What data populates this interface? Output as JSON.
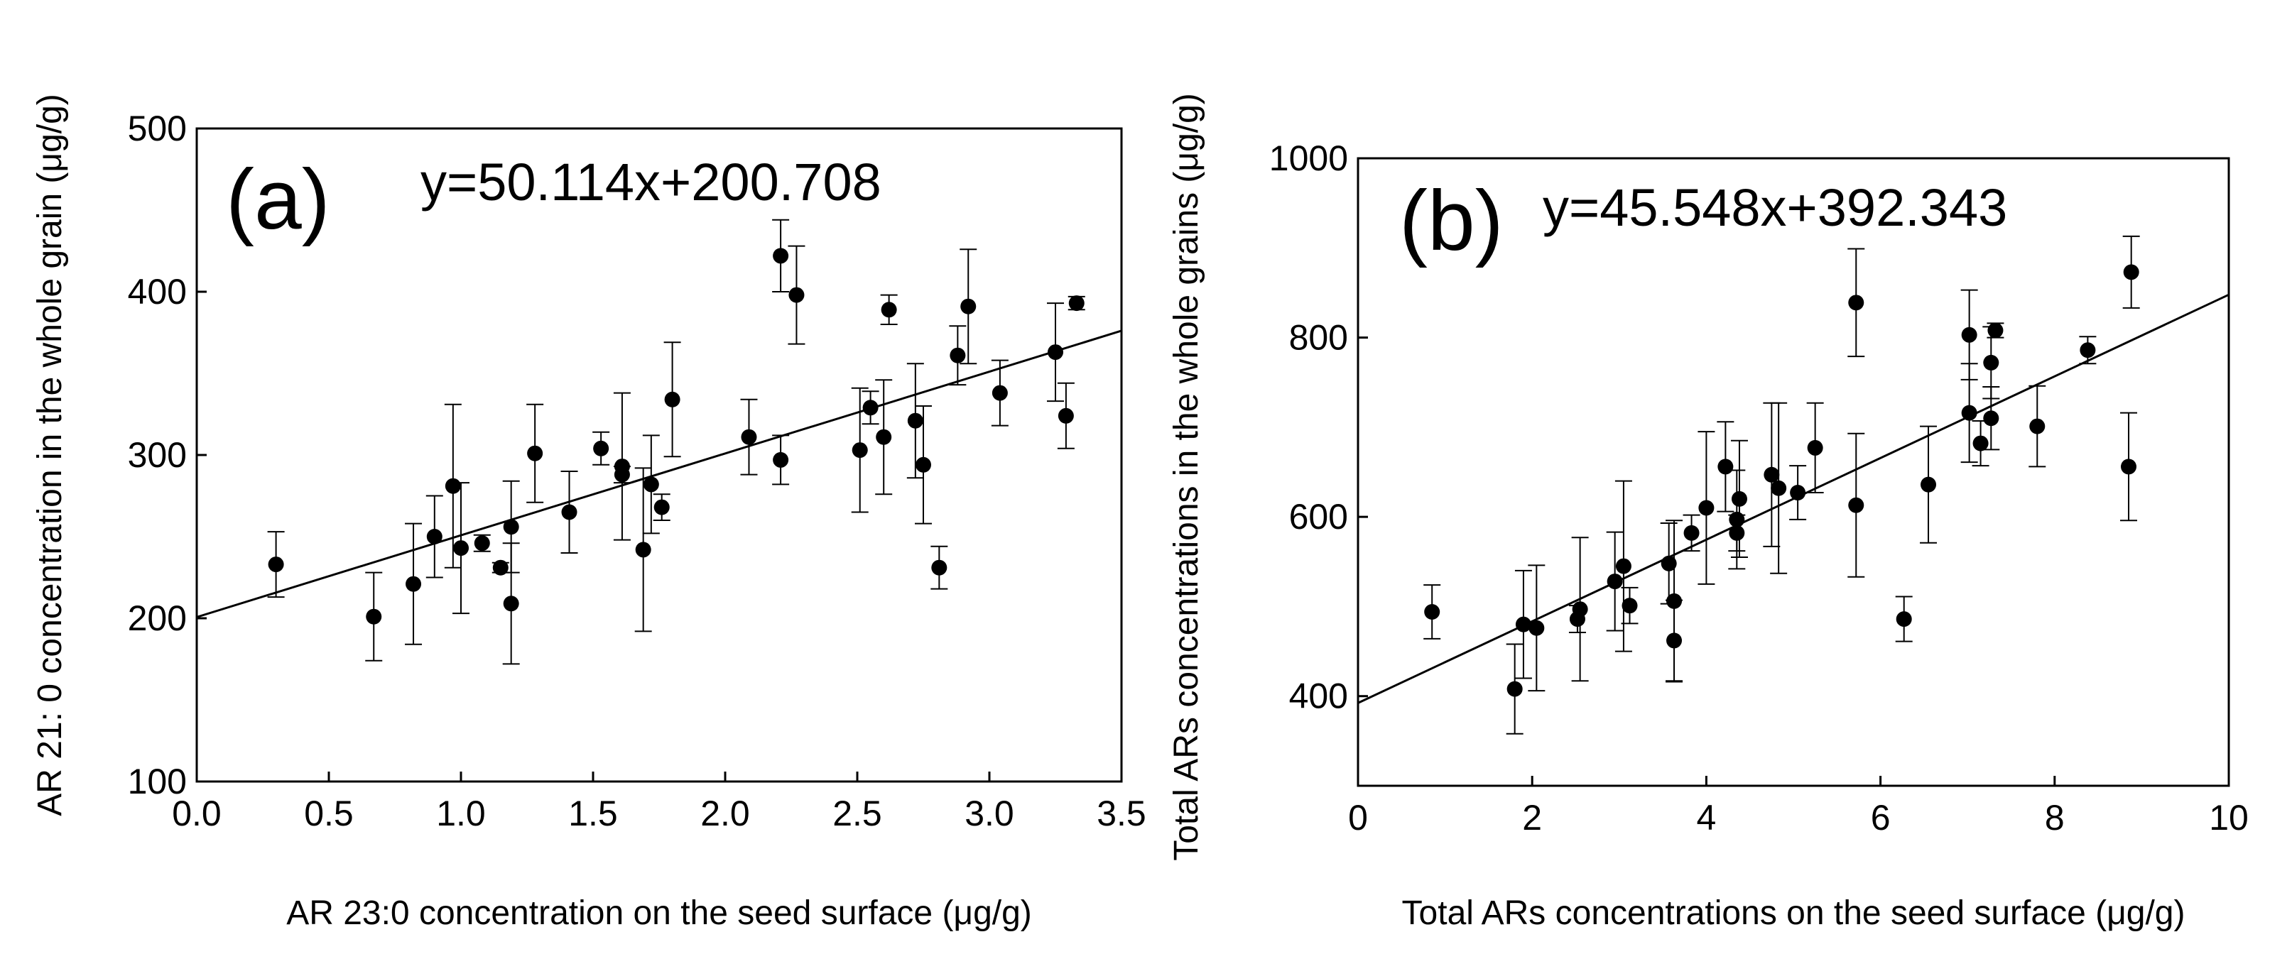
{
  "chart_data": [
    {
      "type": "scatter",
      "panel_label": "(a)",
      "equation": "y=50.114x+200.708",
      "xlabel": "AR 23:0 concentration on the seed surface (μg/g)",
      "ylabel": "AR 21: 0 concentration in the whole grain (μg/g)",
      "xlim": [
        0,
        3.5
      ],
      "ylim": [
        100,
        500
      ],
      "xticks": [
        0,
        0.5,
        1.0,
        1.5,
        2.0,
        2.5,
        3.0,
        3.5
      ],
      "xtick_labels": [
        "0.0",
        "0.5",
        "1.0",
        "1.5",
        "2.0",
        "2.5",
        "3.0",
        "3.5"
      ],
      "yticks": [
        100,
        200,
        300,
        400,
        500
      ],
      "ytick_labels": [
        "100",
        "200",
        "300",
        "400",
        "500"
      ],
      "regression": {
        "slope": 50.114,
        "intercept": 200.708
      },
      "points": [
        {
          "x": 0.3,
          "y": 233,
          "err": 20
        },
        {
          "x": 0.67,
          "y": 201,
          "err": 27
        },
        {
          "x": 0.82,
          "y": 221,
          "err": 37
        },
        {
          "x": 0.9,
          "y": 250,
          "err": 25
        },
        {
          "x": 0.97,
          "y": 281,
          "err": 50
        },
        {
          "x": 1.0,
          "y": 243,
          "err": 40
        },
        {
          "x": 1.08,
          "y": 246,
          "err": 5
        },
        {
          "x": 1.15,
          "y": 231,
          "err": 3
        },
        {
          "x": 1.19,
          "y": 256,
          "err": 28
        },
        {
          "x": 1.19,
          "y": 209,
          "err": 37
        },
        {
          "x": 1.28,
          "y": 301,
          "err": 30
        },
        {
          "x": 1.41,
          "y": 265,
          "err": 25
        },
        {
          "x": 1.53,
          "y": 304,
          "err": 10
        },
        {
          "x": 1.61,
          "y": 288,
          "err": 5
        },
        {
          "x": 1.61,
          "y": 293,
          "err": 45
        },
        {
          "x": 1.69,
          "y": 242,
          "err": 50
        },
        {
          "x": 1.72,
          "y": 282,
          "err": 30
        },
        {
          "x": 1.76,
          "y": 268,
          "err": 8
        },
        {
          "x": 1.8,
          "y": 334,
          "err": 35
        },
        {
          "x": 2.09,
          "y": 311,
          "err": 23
        },
        {
          "x": 2.21,
          "y": 297,
          "err": 15
        },
        {
          "x": 2.21,
          "y": 422,
          "err": 22
        },
        {
          "x": 2.27,
          "y": 398,
          "err": 30
        },
        {
          "x": 2.51,
          "y": 303,
          "err": 38
        },
        {
          "x": 2.55,
          "y": 329,
          "err": 10
        },
        {
          "x": 2.6,
          "y": 311,
          "err": 35
        },
        {
          "x": 2.62,
          "y": 389,
          "err": 9
        },
        {
          "x": 2.72,
          "y": 321,
          "err": 35
        },
        {
          "x": 2.75,
          "y": 294,
          "err": 36
        },
        {
          "x": 2.81,
          "y": 231,
          "err": 13
        },
        {
          "x": 2.88,
          "y": 361,
          "err": 18
        },
        {
          "x": 2.92,
          "y": 391,
          "err": 35
        },
        {
          "x": 3.04,
          "y": 338,
          "err": 20
        },
        {
          "x": 3.25,
          "y": 363,
          "err": 30
        },
        {
          "x": 3.29,
          "y": 324,
          "err": 20
        },
        {
          "x": 3.33,
          "y": 393,
          "err": 4
        }
      ]
    },
    {
      "type": "scatter",
      "panel_label": "(b)",
      "equation": "y=45.548x+392.343",
      "xlabel": "Total ARs concentrations on the seed surface (μg/g)",
      "ylabel": "Total ARs concentrations in the whole grains (μg/g)",
      "xlim": [
        0,
        10
      ],
      "ylim": [
        300,
        1000
      ],
      "xticks": [
        0,
        2,
        4,
        6,
        8,
        10
      ],
      "xtick_labels": [
        "0",
        "2",
        "4",
        "6",
        "8",
        "10"
      ],
      "yticks": [
        400,
        600,
        800,
        1000
      ],
      "ytick_labels": [
        "400",
        "600",
        "800",
        "1000"
      ],
      "regression": {
        "slope": 45.548,
        "intercept": 392.343
      },
      "points": [
        {
          "x": 0.85,
          "y": 494,
          "err": 30
        },
        {
          "x": 1.8,
          "y": 408,
          "err": 50
        },
        {
          "x": 1.9,
          "y": 480,
          "err": 60
        },
        {
          "x": 2.05,
          "y": 476,
          "err": 70
        },
        {
          "x": 2.52,
          "y": 486,
          "err": 15
        },
        {
          "x": 2.55,
          "y": 497,
          "err": 80
        },
        {
          "x": 2.95,
          "y": 528,
          "err": 55
        },
        {
          "x": 3.05,
          "y": 545,
          "err": 95
        },
        {
          "x": 3.12,
          "y": 501,
          "err": 20
        },
        {
          "x": 3.57,
          "y": 548,
          "err": 45
        },
        {
          "x": 3.63,
          "y": 506,
          "err": 90
        },
        {
          "x": 3.63,
          "y": 462,
          "err": 45
        },
        {
          "x": 3.83,
          "y": 582,
          "err": 20
        },
        {
          "x": 4.0,
          "y": 610,
          "err": 85
        },
        {
          "x": 4.22,
          "y": 656,
          "err": 50
        },
        {
          "x": 4.35,
          "y": 597,
          "err": 55
        },
        {
          "x": 4.35,
          "y": 582,
          "err": 20
        },
        {
          "x": 4.38,
          "y": 620,
          "err": 65
        },
        {
          "x": 4.75,
          "y": 647,
          "err": 80
        },
        {
          "x": 4.83,
          "y": 632,
          "err": 95
        },
        {
          "x": 5.05,
          "y": 627,
          "err": 30
        },
        {
          "x": 5.25,
          "y": 677,
          "err": 50
        },
        {
          "x": 5.72,
          "y": 839,
          "err": 60
        },
        {
          "x": 5.72,
          "y": 613,
          "err": 80
        },
        {
          "x": 6.27,
          "y": 486,
          "err": 25
        },
        {
          "x": 6.55,
          "y": 636,
          "err": 65
        },
        {
          "x": 7.02,
          "y": 803,
          "err": 50
        },
        {
          "x": 7.02,
          "y": 716,
          "err": 55
        },
        {
          "x": 7.15,
          "y": 682,
          "err": 25
        },
        {
          "x": 7.27,
          "y": 772,
          "err": 40
        },
        {
          "x": 7.27,
          "y": 710,
          "err": 35
        },
        {
          "x": 7.32,
          "y": 808,
          "err": 8
        },
        {
          "x": 7.8,
          "y": 701,
          "err": 45
        },
        {
          "x": 8.38,
          "y": 786,
          "err": 15
        },
        {
          "x": 8.85,
          "y": 656,
          "err": 60
        },
        {
          "x": 8.88,
          "y": 873,
          "err": 40
        }
      ]
    }
  ]
}
